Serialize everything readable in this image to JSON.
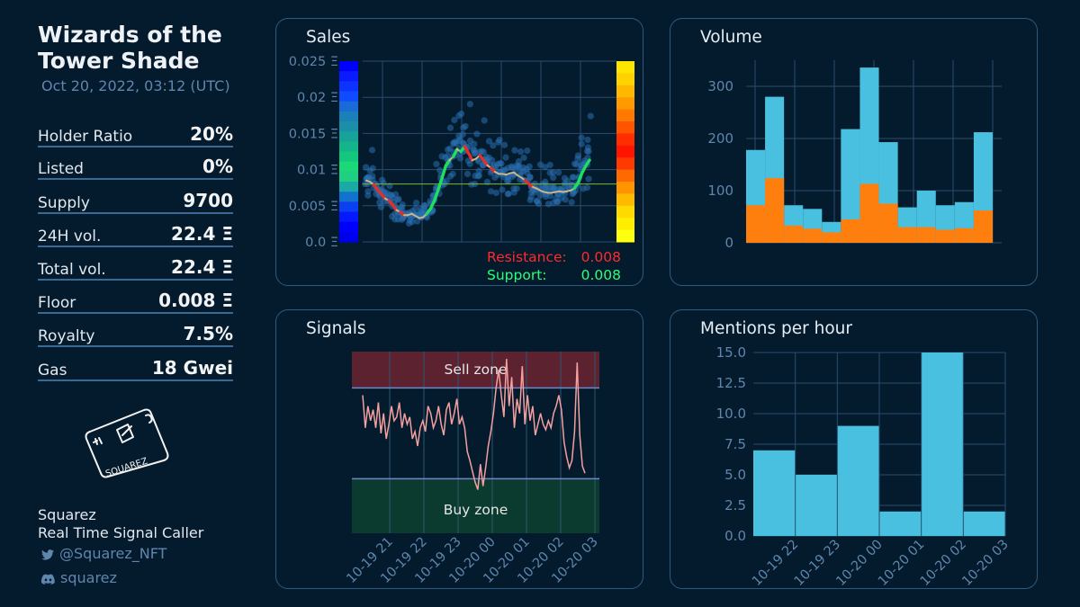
{
  "collection": {
    "title_line1": "Wizards of the",
    "title_line2": "Tower Shade",
    "timestamp": "Oct 20, 2022, 03:12 (UTC)"
  },
  "stats": [
    {
      "label": "Holder Ratio",
      "value": "20%"
    },
    {
      "label": "Listed",
      "value": "0%"
    },
    {
      "label": "Supply",
      "value": "9700"
    },
    {
      "label": "24H vol.",
      "value": "22.4 Ξ"
    },
    {
      "label": "Total vol.",
      "value": "22.4 Ξ"
    },
    {
      "label": "Floor",
      "value": "0.008 Ξ"
    },
    {
      "label": "Royalty",
      "value": "7.5%"
    },
    {
      "label": "Gas",
      "value": "18 Gwei"
    }
  ],
  "logo": {
    "text": "SQUAREZ",
    "icon": "squarez-card-logo-icon"
  },
  "footer": {
    "name": "Squarez",
    "role": "Real Time Signal Caller",
    "twitter": "@Squarez_NFT",
    "discord": "squarez",
    "twitter_icon": "twitter-bird-icon",
    "discord_icon": "discord-icon"
  },
  "colors": {
    "background": "#041b2d",
    "panel_border": "#2f5a80",
    "axis_text": "#5f86ad",
    "bar_blue": "#4ac0e0",
    "bar_orange": "#ff7f0e",
    "resistance": "#ff2a2a",
    "support": "#2aff7a",
    "signal_line": "#f4a0a0",
    "sell_zone": "#5c2230",
    "buy_zone": "#0b3a2e"
  },
  "chart_data": [
    {
      "panel_title": "Sales",
      "type": "scatter",
      "y_ticks": [
        "0.0 Ξ",
        "0.005 Ξ",
        "0.01 Ξ",
        "0.015 Ξ",
        "0.02 Ξ",
        "0.025 Ξ"
      ],
      "ylim": [
        0,
        0.025
      ],
      "legend": [
        {
          "label": "Resistance:",
          "value": "0.008"
        },
        {
          "label": "Support:",
          "value": "0.008"
        }
      ],
      "support_level": 0.008,
      "median_price": [
        0.0085,
        0.0083,
        0.0079,
        0.0072,
        0.0066,
        0.006,
        0.0057,
        0.0051,
        0.0044,
        0.0041,
        0.0037,
        0.0037,
        0.0039,
        0.0036,
        0.0033,
        0.0034,
        0.0039,
        0.0046,
        0.0057,
        0.0072,
        0.0088,
        0.0105,
        0.0113,
        0.0118,
        0.0128,
        0.0125,
        0.0132,
        0.0123,
        0.0113,
        0.0115,
        0.012,
        0.0113,
        0.0106,
        0.0102,
        0.0097,
        0.0094,
        0.0094,
        0.0093,
        0.0095,
        0.0096,
        0.0092,
        0.0089,
        0.0085,
        0.008,
        0.0076,
        0.0074,
        0.0071,
        0.0069,
        0.0068,
        0.0068,
        0.0069,
        0.007,
        0.0069,
        0.007,
        0.0071,
        0.0074,
        0.0082,
        0.0095,
        0.0105,
        0.0113
      ]
    },
    {
      "panel_title": "Volume",
      "type": "bar",
      "y_ticks": [
        "0",
        "100",
        "200",
        "300"
      ],
      "ylim": [
        0,
        350
      ],
      "series": [
        {
          "values": [
            178,
            280,
            72,
            65,
            40,
            218,
            336,
            193,
            68,
            100,
            72,
            78,
            212
          ]
        },
        {
          "values": [
            72,
            124,
            33,
            27,
            20,
            45,
            113,
            75,
            30,
            30,
            25,
            28,
            62
          ]
        }
      ]
    },
    {
      "panel_title": "Signals",
      "type": "line",
      "x_ticks": [
        "10-19 21",
        "10-19 22",
        "10-19 23",
        "10-20 00",
        "10-20 01",
        "10-20 02",
        "10-20 03"
      ],
      "zones": [
        {
          "label": "Sell zone"
        },
        {
          "label": "Buy zone"
        }
      ],
      "ylim": [
        0,
        100
      ],
      "sell_threshold": 80,
      "buy_threshold": 30,
      "values": [
        76,
        58,
        70,
        62,
        68,
        58,
        72,
        55,
        66,
        52,
        60,
        70,
        62,
        64,
        72,
        58,
        66,
        60,
        64,
        52,
        56,
        48,
        58,
        62,
        56,
        70,
        66,
        58,
        62,
        70,
        60,
        54,
        68,
        72,
        60,
        66,
        74,
        60,
        64,
        58,
        45,
        40,
        34,
        28,
        24,
        38,
        26,
        36,
        48,
        56,
        66,
        80,
        90,
        76,
        64,
        96,
        70,
        86,
        58,
        74,
        66,
        92,
        60,
        76,
        62,
        70,
        54,
        60,
        66,
        60,
        57,
        62,
        58,
        66,
        70,
        76,
        68,
        50,
        42,
        36,
        40,
        56,
        94,
        54,
        37,
        33
      ]
    },
    {
      "panel_title": "Mentions per hour",
      "type": "bar",
      "x_ticks": [
        "10-19 22",
        "10-19 23",
        "10-20 00",
        "10-20 01",
        "10-20 02",
        "10-20 03"
      ],
      "y_ticks": [
        "0.0",
        "2.5",
        "5.0",
        "7.5",
        "10.0",
        "12.5",
        "15.0"
      ],
      "ylim": [
        0,
        15
      ],
      "values": [
        7,
        5,
        9,
        2,
        15,
        2
      ]
    }
  ]
}
